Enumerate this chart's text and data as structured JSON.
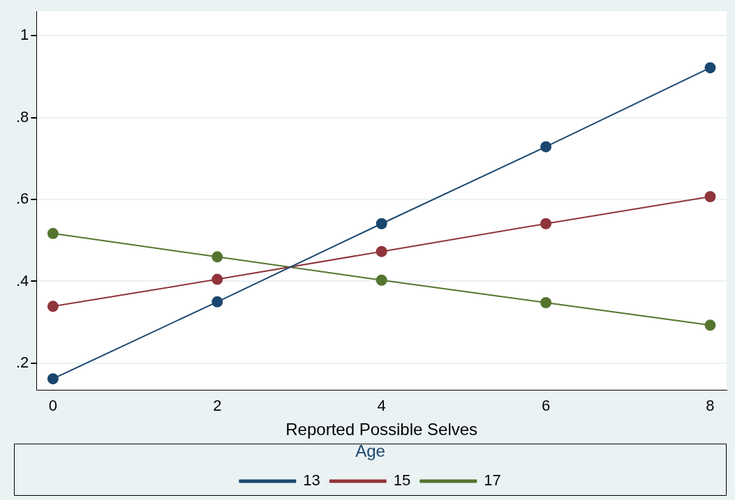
{
  "chart_data": {
    "type": "line",
    "xlabel": "Reported Possible Selves",
    "legend_title": "Age",
    "x": [
      0,
      2,
      4,
      6,
      8
    ],
    "series": [
      {
        "name": "13",
        "color": "#1a476f",
        "values": [
          0.162,
          0.35,
          0.541,
          0.729,
          0.922
        ]
      },
      {
        "name": "15",
        "color": "#90353b",
        "values": [
          0.339,
          0.405,
          0.473,
          0.541,
          0.607
        ]
      },
      {
        "name": "17",
        "color": "#55752f",
        "values": [
          0.517,
          0.46,
          0.403,
          0.348,
          0.293
        ]
      }
    ],
    "xlim": [
      -0.2,
      8.2
    ],
    "xticks": [
      0,
      2,
      4,
      6,
      8
    ],
    "ylim": [
      0.135,
      1.06
    ],
    "yticks": [
      {
        "value": 0.2,
        "label": ".2"
      },
      {
        "value": 0.4,
        "label": ".4"
      },
      {
        "value": 0.6,
        "label": ".6"
      },
      {
        "value": 0.8,
        "label": ".8"
      },
      1
    ],
    "grid": "y",
    "legend": "bottom",
    "marker": "circle",
    "line_style": "solid"
  }
}
